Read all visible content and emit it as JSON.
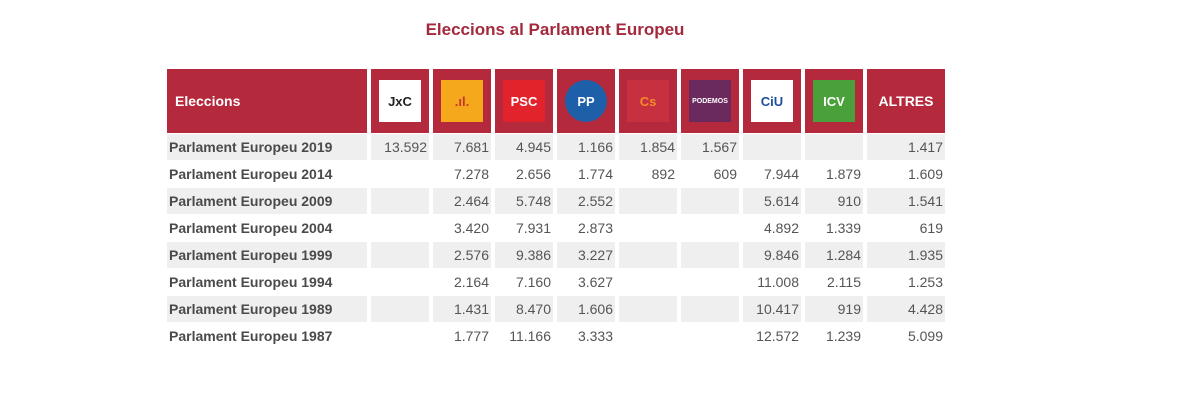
{
  "title": "Eleccions al Parlament Europeu",
  "header": {
    "label": "Eleccions",
    "others": "ALTRES"
  },
  "parties": [
    {
      "logo": "JUNTS PER CATALUNYA",
      "short": "JxC",
      "bg": "#ffffff",
      "fg": "#222222"
    },
    {
      "logo": "ERC",
      "short": ".ıl.",
      "bg": "#f6a81c",
      "fg": "#c0392b"
    },
    {
      "logo": "PSC",
      "short": "PSC",
      "bg": "#e3232c",
      "fg": "#ffffff"
    },
    {
      "logo": "PP",
      "short": "PP",
      "bg": "#1d5fa8",
      "fg": "#ffffff"
    },
    {
      "logo": "Cs",
      "short": "Cs",
      "bg": "#c7303f",
      "fg": "#f28b2b"
    },
    {
      "logo": "PODEMOS",
      "short": "PODEMOS",
      "bg": "#6b2a5e",
      "fg": "#ffffff"
    },
    {
      "logo": "CiU",
      "short": "CiU",
      "bg": "#ffffff",
      "fg": "#1c4f9c"
    },
    {
      "logo": "ICV",
      "short": "ICV",
      "bg": "#4aa13c",
      "fg": "#ffffff"
    }
  ],
  "rows": [
    {
      "label": "Parlament Europeu 2019",
      "values": [
        "13.592",
        "7.681",
        "4.945",
        "1.166",
        "1.854",
        "1.567",
        "",
        "",
        "1.417"
      ]
    },
    {
      "label": "Parlament Europeu 2014",
      "values": [
        "",
        "7.278",
        "2.656",
        "1.774",
        "892",
        "609",
        "7.944",
        "1.879",
        "1.609"
      ]
    },
    {
      "label": "Parlament Europeu 2009",
      "values": [
        "",
        "2.464",
        "5.748",
        "2.552",
        "",
        "",
        "5.614",
        "910",
        "1.541"
      ]
    },
    {
      "label": "Parlament Europeu 2004",
      "values": [
        "",
        "3.420",
        "7.931",
        "2.873",
        "",
        "",
        "4.892",
        "1.339",
        "619"
      ]
    },
    {
      "label": "Parlament Europeu 1999",
      "values": [
        "",
        "2.576",
        "9.386",
        "3.227",
        "",
        "",
        "9.846",
        "1.284",
        "1.935"
      ]
    },
    {
      "label": "Parlament Europeu 1994",
      "values": [
        "",
        "2.164",
        "7.160",
        "3.627",
        "",
        "",
        "11.008",
        "2.115",
        "1.253"
      ]
    },
    {
      "label": "Parlament Europeu 1989",
      "values": [
        "",
        "1.431",
        "8.470",
        "1.606",
        "",
        "",
        "10.417",
        "919",
        "4.428"
      ]
    },
    {
      "label": "Parlament Europeu 1987",
      "values": [
        "",
        "1.777",
        "11.166",
        "3.333",
        "",
        "",
        "12.572",
        "1.239",
        "5.099"
      ]
    }
  ]
}
